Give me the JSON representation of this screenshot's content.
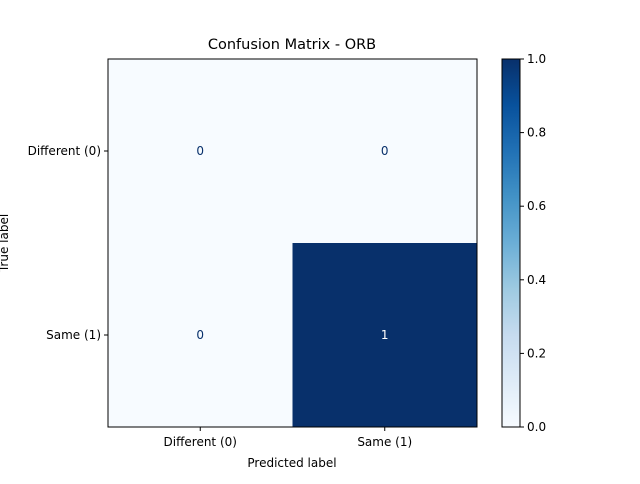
{
  "chart_data": {
    "type": "heatmap",
    "title": "Confusion Matrix - ORB",
    "xlabel": "Predicted label",
    "ylabel": "True label",
    "x_categories": [
      "Different (0)",
      "Same (1)"
    ],
    "y_categories": [
      "Different (0)",
      "Same (1)"
    ],
    "values": [
      [
        0,
        0
      ],
      [
        0,
        1
      ]
    ],
    "colormap": "Blues",
    "color_low": "#f7fbff",
    "color_high": "#08306b",
    "colorbar": {
      "range": [
        0.0,
        1.0
      ],
      "ticks": [
        "0.0",
        "0.2",
        "0.4",
        "0.6",
        "0.8",
        "1.0"
      ]
    },
    "legend": "colorbar-right"
  }
}
